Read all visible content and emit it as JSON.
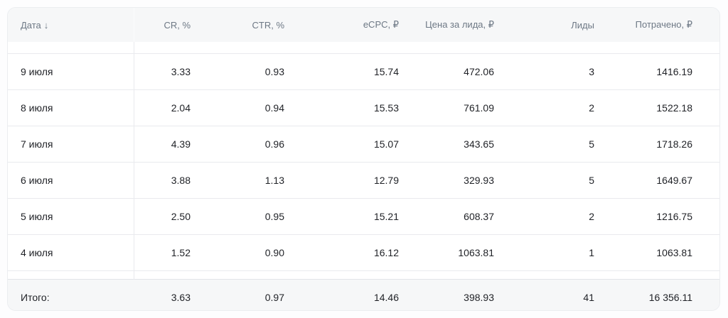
{
  "table": {
    "columns": [
      {
        "key": "date",
        "label": "Дата",
        "align": "left",
        "sorted_desc": true
      },
      {
        "key": "cr",
        "label": "CR, %",
        "align": "right",
        "sorted_desc": false
      },
      {
        "key": "ctr",
        "label": "CTR, %",
        "align": "right",
        "sorted_desc": false
      },
      {
        "key": "ecpc",
        "label": "eCPC, ₽",
        "align": "right",
        "sorted_desc": false
      },
      {
        "key": "cpl",
        "label": "Цена за лида, ₽",
        "align": "right",
        "sorted_desc": false
      },
      {
        "key": "leads",
        "label": "Лиды",
        "align": "right",
        "sorted_desc": false
      },
      {
        "key": "spent",
        "label": "Потрачено, ₽",
        "align": "right",
        "sorted_desc": false
      }
    ],
    "sort_icon": "↓",
    "rows": [
      {
        "date": "9 июля",
        "cr": "3.33",
        "ctr": "0.93",
        "ecpc": "15.74",
        "cpl": "472.06",
        "leads": "3",
        "spent": "1416.19"
      },
      {
        "date": "8 июля",
        "cr": "2.04",
        "ctr": "0.94",
        "ecpc": "15.53",
        "cpl": "761.09",
        "leads": "2",
        "spent": "1522.18"
      },
      {
        "date": "7 июля",
        "cr": "4.39",
        "ctr": "0.96",
        "ecpc": "15.07",
        "cpl": "343.65",
        "leads": "5",
        "spent": "1718.26"
      },
      {
        "date": "6 июля",
        "cr": "3.88",
        "ctr": "1.13",
        "ecpc": "12.79",
        "cpl": "329.93",
        "leads": "5",
        "spent": "1649.67"
      },
      {
        "date": "5 июля",
        "cr": "2.50",
        "ctr": "0.95",
        "ecpc": "15.21",
        "cpl": "608.37",
        "leads": "2",
        "spent": "1216.75"
      },
      {
        "date": "4 июля",
        "cr": "1.52",
        "ctr": "0.90",
        "ecpc": "16.12",
        "cpl": "1063.81",
        "leads": "1",
        "spent": "1063.81"
      }
    ],
    "footer": {
      "date": "Итого:",
      "cr": "3.63",
      "ctr": "0.97",
      "ecpc": "14.46",
      "cpl": "398.93",
      "leads": "41",
      "spent": "16 356.11"
    }
  },
  "colors": {
    "page_bg": "#fdfdfe",
    "card_bg": "#ffffff",
    "card_border": "#ebedf0",
    "header_bg": "#f6f7f8",
    "footer_bg": "#f6f7f8",
    "row_border": "#e9eaee",
    "header_text": "#6d7885",
    "body_text": "#1f2126"
  }
}
